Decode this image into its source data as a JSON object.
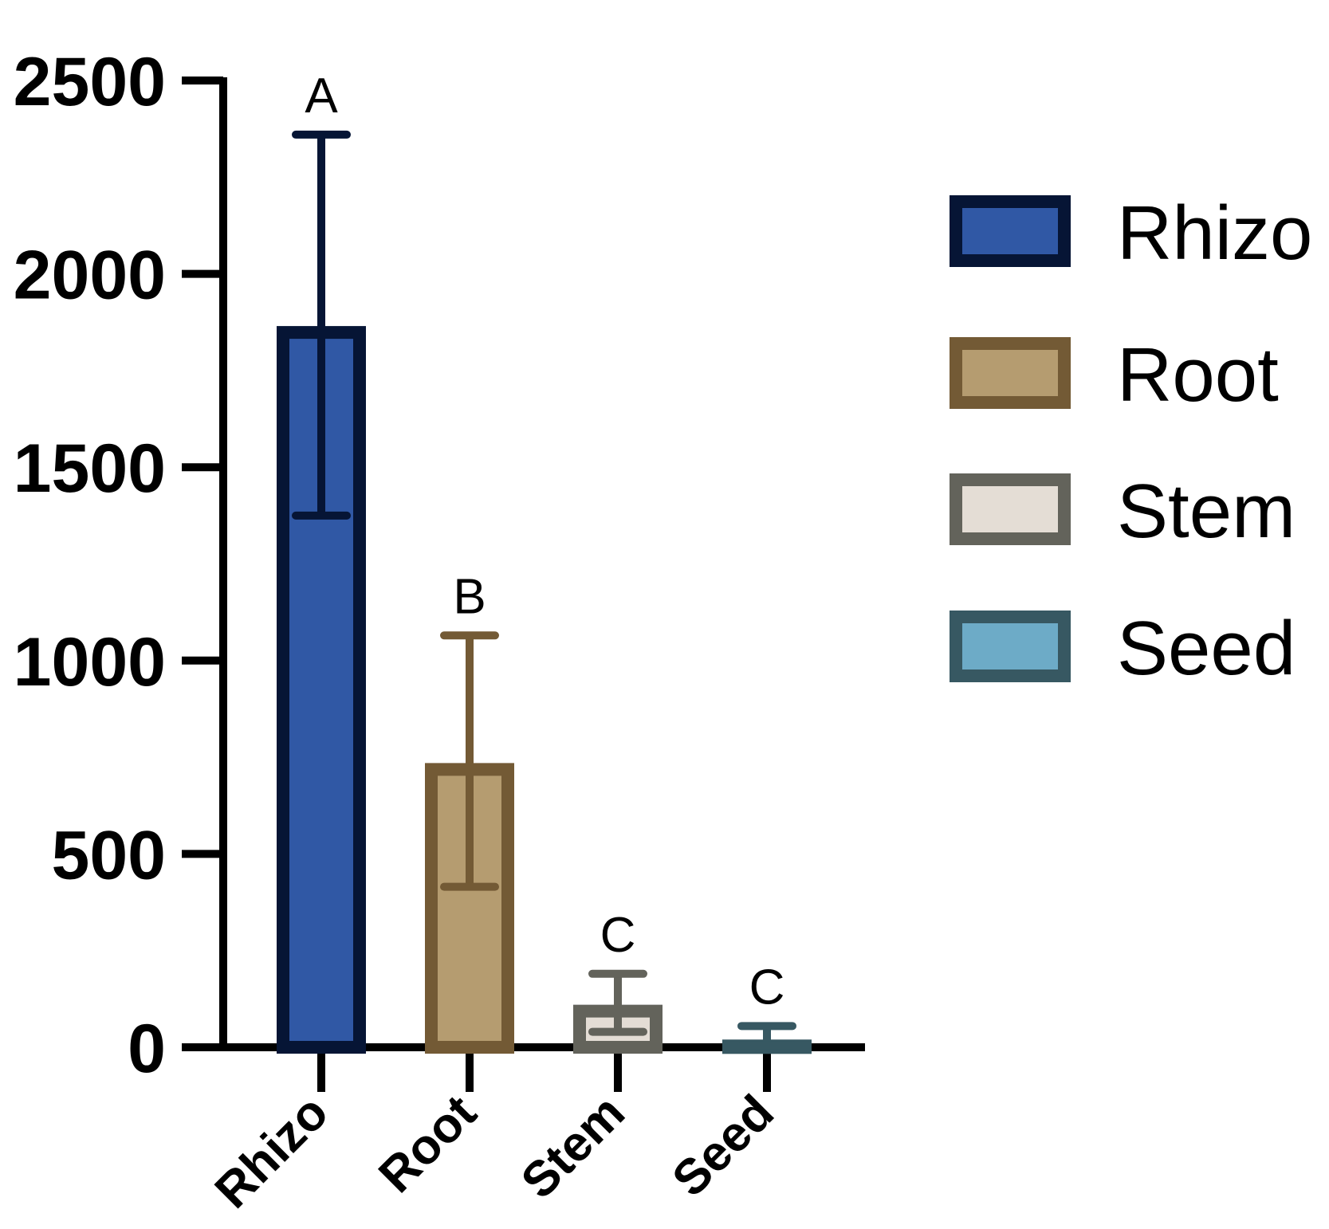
{
  "chart_data": {
    "type": "bar",
    "categories": [
      "Rhizo",
      "Root",
      "Stem",
      "Seed"
    ],
    "values": [
      1865,
      735,
      110,
      20
    ],
    "error_bars": [
      {
        "lower": 1375,
        "upper": 2360
      },
      {
        "lower": 415,
        "upper": 1065
      },
      {
        "lower": 40,
        "upper": 190
      },
      {
        "lower": 5,
        "upper": 55
      }
    ],
    "significance_letters": [
      "A",
      "B",
      "C",
      "C"
    ],
    "ylim": [
      0,
      2500
    ],
    "yticks": [
      "0",
      "500",
      "1000",
      "1500",
      "2000",
      "2500"
    ],
    "grid": false,
    "legend_position": "right",
    "legend": [
      "Rhizo",
      "Root",
      "Stem",
      "Seed"
    ],
    "colors": {
      "Rhizo": {
        "fill": "#3058a5",
        "stroke": "#061535"
      },
      "Root": {
        "fill": "#b59c70",
        "stroke": "#735a35"
      },
      "Stem": {
        "fill": "#e4ddd5",
        "stroke": "#63635b"
      },
      "Seed": {
        "fill": "#6dabc7",
        "stroke": "#375862"
      }
    }
  }
}
